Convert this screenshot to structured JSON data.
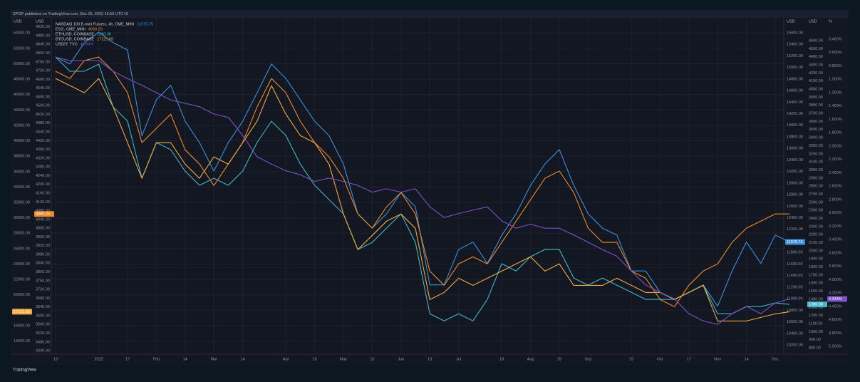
{
  "header": "SPGP published on TradingView.com, Dec 05, 2022 15:56 UTC+8",
  "footer": "TradingView",
  "chart_data": {
    "type": "line",
    "categories": [
      "13",
      null,
      null,
      "2022",
      null,
      "17",
      null,
      "Feb",
      null,
      "14",
      null,
      "Mar",
      null,
      "14",
      null,
      null,
      "Apr",
      null,
      "18",
      null,
      "May",
      null,
      "16",
      null,
      "Jun",
      null,
      "13",
      null,
      "Jul",
      null,
      null,
      "18",
      null,
      "Aug",
      null,
      "15",
      null,
      "Sep",
      null,
      null,
      "19",
      null,
      "Oct",
      null,
      "17",
      null,
      "Nov",
      null,
      "14",
      null,
      "Dec",
      null
    ],
    "axes": [
      {
        "label": "USD",
        "side": "left",
        "grid": true,
        "ylim": [
          12300,
          55500
        ],
        "yticks": [
          {
            "value": 14000,
            "label": "14000.00"
          },
          {
            "value": 16000,
            "label": "16000.00"
          },
          {
            "value": 18000,
            "label": "18000.00"
          },
          {
            "value": 20000,
            "label": "20000.00"
          },
          {
            "value": 22000,
            "label": "22000.00"
          },
          {
            "value": 24000,
            "label": "24000.00"
          },
          {
            "value": 26000,
            "label": "26000.00"
          },
          {
            "value": 28000,
            "label": "28000.00"
          },
          {
            "value": 30000,
            "label": "30000.00"
          },
          {
            "value": 32000,
            "label": "32000.00"
          },
          {
            "value": 34000,
            "label": "34000.00"
          },
          {
            "value": 36000,
            "label": "36000.00"
          },
          {
            "value": 38000,
            "label": "38000.00"
          },
          {
            "value": 40000,
            "label": "40000.00"
          },
          {
            "value": 42000,
            "label": "42000.00"
          },
          {
            "value": 44000,
            "label": "44000.00"
          },
          {
            "value": 46000,
            "label": "46000.00"
          },
          {
            "value": 48000,
            "label": "48000.00"
          },
          {
            "value": 50000,
            "label": "50000.00"
          },
          {
            "value": 52000,
            "label": "52000.00"
          },
          {
            "value": 54000,
            "label": "54000.00"
          }
        ]
      },
      {
        "label": "USD",
        "side": "left",
        "grid": false,
        "ylim": [
          3424,
          4945
        ],
        "yticks": [
          {
            "value": 3440,
            "label": "3440.00"
          },
          {
            "value": 3480,
            "label": "3480.00"
          },
          {
            "value": 3520,
            "label": "3520.00"
          },
          {
            "value": 3560,
            "label": "3560.00"
          },
          {
            "value": 3600,
            "label": "3600.00"
          },
          {
            "value": 3640,
            "label": "3640.00"
          },
          {
            "value": 3680,
            "label": "3680.00"
          },
          {
            "value": 3720,
            "label": "3720.00"
          },
          {
            "value": 3760,
            "label": "3760.00"
          },
          {
            "value": 3800,
            "label": "3800.00"
          },
          {
            "value": 3840,
            "label": "3840.00"
          },
          {
            "value": 3880,
            "label": "3880.00"
          },
          {
            "value": 3920,
            "label": "3920.00"
          },
          {
            "value": 3960,
            "label": "3960.00"
          },
          {
            "value": 4000,
            "label": "4000.00"
          },
          {
            "value": 4040,
            "label": "4040.00"
          },
          {
            "value": 4080,
            "label": "4080.00"
          },
          {
            "value": 4120,
            "label": "4120.00"
          },
          {
            "value": 4160,
            "label": "4160.00"
          },
          {
            "value": 4200,
            "label": "4200.00"
          },
          {
            "value": 4240,
            "label": "4240.00"
          },
          {
            "value": 4280,
            "label": "4280.00"
          },
          {
            "value": 4320,
            "label": "4320.00"
          },
          {
            "value": 4360,
            "label": "4360.00"
          },
          {
            "value": 4400,
            "label": "4400.00"
          },
          {
            "value": 4440,
            "label": "4440.00"
          },
          {
            "value": 4480,
            "label": "4480.00"
          },
          {
            "value": 4520,
            "label": "4520.00"
          },
          {
            "value": 4560,
            "label": "4560.00"
          },
          {
            "value": 4600,
            "label": "4600.00"
          },
          {
            "value": 4640,
            "label": "4640.00"
          },
          {
            "value": 4680,
            "label": "4680.00"
          },
          {
            "value": 4720,
            "label": "4720.00"
          },
          {
            "value": 4760,
            "label": "4760.00"
          },
          {
            "value": 4800,
            "label": "4800.00"
          },
          {
            "value": 4840,
            "label": "4840.00"
          },
          {
            "value": 4880,
            "label": "4880.00"
          },
          {
            "value": 4920,
            "label": "4920.00"
          }
        ]
      },
      {
        "label": "USD",
        "side": "right",
        "grid": false,
        "ylim": [
          10040,
          15797
        ],
        "yticks": [
          {
            "value": 10200,
            "label": "10200.00"
          },
          {
            "value": 10400,
            "label": "10400.00"
          },
          {
            "value": 10600,
            "label": "10600.00"
          },
          {
            "value": 10800,
            "label": "10800.00"
          },
          {
            "value": 11000,
            "label": "11000.00"
          },
          {
            "value": 11200,
            "label": "11200.00"
          },
          {
            "value": 11400,
            "label": "11400.00"
          },
          {
            "value": 11600,
            "label": "11600.00"
          },
          {
            "value": 11800,
            "label": "11800.00"
          },
          {
            "value": 12000,
            "label": "12000.00"
          },
          {
            "value": 12200,
            "label": "12200.00"
          },
          {
            "value": 12400,
            "label": "12400.00"
          },
          {
            "value": 12600,
            "label": "12600.00"
          },
          {
            "value": 12800,
            "label": "12800.00"
          },
          {
            "value": 13000,
            "label": "13000.00"
          },
          {
            "value": 13200,
            "label": "13200.00"
          },
          {
            "value": 13400,
            "label": "13400.00"
          },
          {
            "value": 13600,
            "label": "13600.00"
          },
          {
            "value": 13800,
            "label": "13800.00"
          },
          {
            "value": 14000,
            "label": "14000.00"
          },
          {
            "value": 14200,
            "label": "14200.00"
          },
          {
            "value": 14400,
            "label": "14400.00"
          },
          {
            "value": 14600,
            "label": "14600.00"
          },
          {
            "value": 14800,
            "label": "14800.00"
          },
          {
            "value": 15000,
            "label": "15000.00"
          },
          {
            "value": 15200,
            "label": "15200.00"
          },
          {
            "value": 15400,
            "label": "15400.00"
          },
          {
            "value": 15600,
            "label": "15600.00"
          }
        ]
      },
      {
        "label": "USD",
        "side": "right",
        "grid": false,
        "ylim": [
          721,
          4838
        ],
        "yticks": [
          {
            "value": 800,
            "label": "800.00"
          },
          {
            "value": 900,
            "label": "900.00"
          },
          {
            "value": 1000,
            "label": "1000.00"
          },
          {
            "value": 1100,
            "label": "1100.00"
          },
          {
            "value": 1200,
            "label": "1200.00"
          },
          {
            "value": 1300,
            "label": "1300.00"
          },
          {
            "value": 1400,
            "label": "1400.00"
          },
          {
            "value": 1500,
            "label": "1500.00"
          },
          {
            "value": 1600,
            "label": "1600.00"
          },
          {
            "value": 1700,
            "label": "1700.00"
          },
          {
            "value": 1800,
            "label": "1800.00"
          },
          {
            "value": 1900,
            "label": "1900.00"
          },
          {
            "value": 2000,
            "label": "2000.00"
          },
          {
            "value": 2100,
            "label": "2100.00"
          },
          {
            "value": 2200,
            "label": "2200.00"
          },
          {
            "value": 2300,
            "label": "2300.00"
          },
          {
            "value": 2400,
            "label": "2400.00"
          },
          {
            "value": 2500,
            "label": "2500.00"
          },
          {
            "value": 2600,
            "label": "2600.00"
          },
          {
            "value": 2700,
            "label": "2700.00"
          },
          {
            "value": 2800,
            "label": "2800.00"
          },
          {
            "value": 2900,
            "label": "2900.00"
          },
          {
            "value": 3000,
            "label": "3000.00"
          },
          {
            "value": 3100,
            "label": "3100.00"
          },
          {
            "value": 3200,
            "label": "3200.00"
          },
          {
            "value": 3300,
            "label": "3300.00"
          },
          {
            "value": 3400,
            "label": "3400.00"
          },
          {
            "value": 3500,
            "label": "3500.00"
          },
          {
            "value": 3600,
            "label": "3600.00"
          },
          {
            "value": 3700,
            "label": "3700.00"
          },
          {
            "value": 3800,
            "label": "3800.00"
          },
          {
            "value": 3900,
            "label": "3900.00"
          },
          {
            "value": 4000,
            "label": "4000.00"
          },
          {
            "value": 4100,
            "label": "4100.00"
          },
          {
            "value": 4200,
            "label": "4200.00"
          },
          {
            "value": 4300,
            "label": "4300.00"
          },
          {
            "value": 4400,
            "label": "4400.00"
          },
          {
            "value": 4500,
            "label": "4500.00"
          },
          {
            "value": 4600,
            "label": "4600.00"
          }
        ]
      },
      {
        "label": "%",
        "side": "right",
        "grid": false,
        "ylim": [
          5.117,
          0.133
        ],
        "yticks": [
          {
            "value": 0.4,
            "label": "0.400%"
          },
          {
            "value": 0.6,
            "label": "0.600%"
          },
          {
            "value": 0.8,
            "label": "0.800%"
          },
          {
            "value": 1.0,
            "label": "1.000%"
          },
          {
            "value": 1.2,
            "label": "1.200%"
          },
          {
            "value": 1.4,
            "label": "1.400%"
          },
          {
            "value": 1.6,
            "label": "1.600%"
          },
          {
            "value": 1.8,
            "label": "1.800%"
          },
          {
            "value": 2.0,
            "label": "2.000%"
          },
          {
            "value": 2.2,
            "label": "2.200%"
          },
          {
            "value": 2.4,
            "label": "2.400%"
          },
          {
            "value": 2.6,
            "label": "2.600%"
          },
          {
            "value": 2.8,
            "label": "2.800%"
          },
          {
            "value": 3.0,
            "label": "3.000%"
          },
          {
            "value": 3.2,
            "label": "3.200%"
          },
          {
            "value": 3.4,
            "label": "3.400%"
          },
          {
            "value": 3.6,
            "label": "3.600%"
          },
          {
            "value": 3.8,
            "label": "3.800%"
          },
          {
            "value": 4.0,
            "label": "4.000%"
          },
          {
            "value": 4.2,
            "label": "4.200%"
          },
          {
            "value": 4.4,
            "label": "4.400%"
          },
          {
            "value": 4.6,
            "label": "4.600%"
          },
          {
            "value": 4.8,
            "label": "4.800%"
          },
          {
            "value": 5.0,
            "label": "5.000%"
          }
        ]
      }
    ],
    "series": [
      {
        "name": "NASDAQ 100 E-mini Futures, 4h, CME_MINI",
        "legend_value": "11975.75",
        "color": "#3b8fdc",
        "axis": 2,
        "values": [
          15180,
          15060,
          15430,
          15610,
          15430,
          15300,
          13820,
          14440,
          14690,
          14070,
          13700,
          13210,
          13700,
          14070,
          14560,
          15060,
          14810,
          14440,
          14070,
          13820,
          13330,
          12470,
          12220,
          12470,
          12840,
          12590,
          11240,
          11240,
          11850,
          11980,
          11610,
          12100,
          12470,
          12960,
          13330,
          13580,
          12960,
          12470,
          12220,
          12100,
          11480,
          11480,
          11110,
          10990,
          11110,
          11240,
          10870,
          11480,
          11980,
          11610,
          12100,
          11980
        ]
      },
      {
        "name": "ES1!, CME_MINI",
        "legend_value": "4069.25",
        "color": "#f08a24",
        "axis": 1,
        "values": [
          4717,
          4684,
          4766,
          4782,
          4717,
          4619,
          4391,
          4456,
          4521,
          4358,
          4293,
          4195,
          4293,
          4391,
          4554,
          4684,
          4619,
          4489,
          4391,
          4326,
          4228,
          4065,
          4000,
          4098,
          4163,
          4065,
          3804,
          3739,
          3837,
          3869,
          3837,
          3935,
          4032,
          4130,
          4228,
          4261,
          4163,
          4000,
          3935,
          3935,
          3804,
          3772,
          3674,
          3641,
          3739,
          3804,
          3837,
          3935,
          4000,
          4032,
          4065,
          4065
        ]
      },
      {
        "name": "ETHUSD, COINBASE",
        "legend_value": "1280.08",
        "color": "#3fb8c8",
        "axis": 3,
        "values": [
          4397,
          4221,
          4221,
          4309,
          3780,
          3604,
          2898,
          3339,
          3251,
          2986,
          2810,
          2898,
          2810,
          2986,
          3339,
          3604,
          3427,
          3074,
          2810,
          2633,
          2457,
          2016,
          2104,
          2281,
          2457,
          2104,
          1222,
          1134,
          1222,
          1134,
          1399,
          1840,
          1751,
          1928,
          2016,
          2016,
          1663,
          1575,
          1663,
          1575,
          1487,
          1399,
          1399,
          1399,
          1487,
          1575,
          1222,
          1222,
          1310,
          1310,
          1355,
          1337
        ]
      },
      {
        "name": "BTCUSD, COINBASE",
        "legend_value": "17121.69",
        "color": "#f5a83a",
        "axis": 0,
        "values": [
          48092,
          47166,
          46240,
          48092,
          44388,
          39758,
          35128,
          39758,
          39758,
          36980,
          35128,
          37906,
          36980,
          39758,
          42536,
          47166,
          43462,
          40684,
          39758,
          36980,
          30498,
          25868,
          27720,
          29572,
          30498,
          28646,
          19386,
          20312,
          22164,
          21238,
          22164,
          23090,
          24016,
          24942,
          23090,
          24016,
          21238,
          21238,
          21238,
          22164,
          21238,
          20312,
          20312,
          19386,
          20312,
          21238,
          16608,
          16608,
          16608,
          17071,
          17534,
          17812
        ]
      },
      {
        "name": "US02Y, TVC",
        "legend_value": "4.334%",
        "color": "#7b52c8",
        "axis": 4,
        "values": [
          0.67,
          0.72,
          0.72,
          0.72,
          0.88,
          0.99,
          1.09,
          1.2,
          1.31,
          1.36,
          1.41,
          1.52,
          1.57,
          1.84,
          2.16,
          2.27,
          2.37,
          2.43,
          2.53,
          2.48,
          2.53,
          2.59,
          2.69,
          2.64,
          2.69,
          2.64,
          2.91,
          3.07,
          3.01,
          2.96,
          2.91,
          3.12,
          3.23,
          3.17,
          3.23,
          3.23,
          3.33,
          3.44,
          3.55,
          3.65,
          3.87,
          4.08,
          4.19,
          4.29,
          4.51,
          4.62,
          4.67,
          4.51,
          4.4,
          4.51,
          4.35,
          4.29
        ]
      }
    ]
  }
}
